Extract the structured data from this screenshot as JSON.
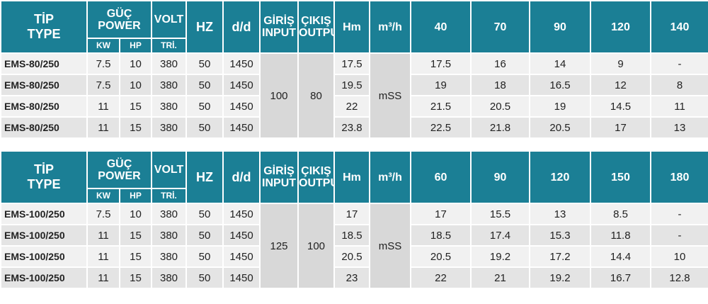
{
  "tables": [
    {
      "header": {
        "type": [
          "TİP",
          "TYPE"
        ],
        "power": [
          "GÜÇ",
          "POWER"
        ],
        "kw": "KW",
        "hp": "HP",
        "volt": "VOLT",
        "tri": "TRİ.",
        "hz": "HZ",
        "dd": "d/d",
        "input": [
          "GİRİŞ",
          "INPUT"
        ],
        "output": [
          "ÇIKIŞ",
          "OUTPUT"
        ],
        "hm": "Hm",
        "flow_unit": "m³/h",
        "flows": [
          "40",
          "70",
          "90",
          "120",
          "140"
        ]
      },
      "input": "100",
      "output": "80",
      "head_unit": "mSS",
      "rows": [
        [
          "EMS-80/250",
          "7.5",
          "10",
          "380",
          "50",
          "1450",
          "17.5",
          "17.5",
          "16",
          "14",
          "9",
          "-"
        ],
        [
          "EMS-80/250",
          "7.5",
          "10",
          "380",
          "50",
          "1450",
          "19.5",
          "19",
          "18",
          "16.5",
          "12",
          "8"
        ],
        [
          "EMS-80/250",
          "11",
          "15",
          "380",
          "50",
          "1450",
          "22",
          "21.5",
          "20.5",
          "19",
          "14.5",
          "11"
        ],
        [
          "EMS-80/250",
          "11",
          "15",
          "380",
          "50",
          "1450",
          "23.8",
          "22.5",
          "21.8",
          "20.5",
          "17",
          "13"
        ]
      ]
    },
    {
      "header": {
        "type": [
          "TİP",
          "TYPE"
        ],
        "power": [
          "GÜÇ",
          "POWER"
        ],
        "kw": "KW",
        "hp": "HP",
        "volt": "VOLT",
        "tri": "TRİ.",
        "hz": "HZ",
        "dd": "d/d",
        "input": [
          "GİRİŞ",
          "INPUT"
        ],
        "output": [
          "ÇIKIŞ",
          "OUTPUT"
        ],
        "hm": "Hm",
        "flow_unit": "m³/h",
        "flows": [
          "60",
          "90",
          "120",
          "150",
          "180"
        ]
      },
      "input": "125",
      "output": "100",
      "head_unit": "mSS",
      "rows": [
        [
          "EMS-100/250",
          "7.5",
          "10",
          "380",
          "50",
          "1450",
          "17",
          "17",
          "15.5",
          "13",
          "8.5",
          "-"
        ],
        [
          "EMS-100/250",
          "11",
          "15",
          "380",
          "50",
          "1450",
          "18.5",
          "18.5",
          "17.4",
          "15.3",
          "11.8",
          "-"
        ],
        [
          "EMS-100/250",
          "11",
          "15",
          "380",
          "50",
          "1450",
          "20.5",
          "20.5",
          "19.2",
          "17.2",
          "14.4",
          "10"
        ],
        [
          "EMS-100/250",
          "11",
          "15",
          "380",
          "50",
          "1450",
          "23",
          "22",
          "21",
          "19.2",
          "16.7",
          "12.8"
        ]
      ]
    }
  ]
}
